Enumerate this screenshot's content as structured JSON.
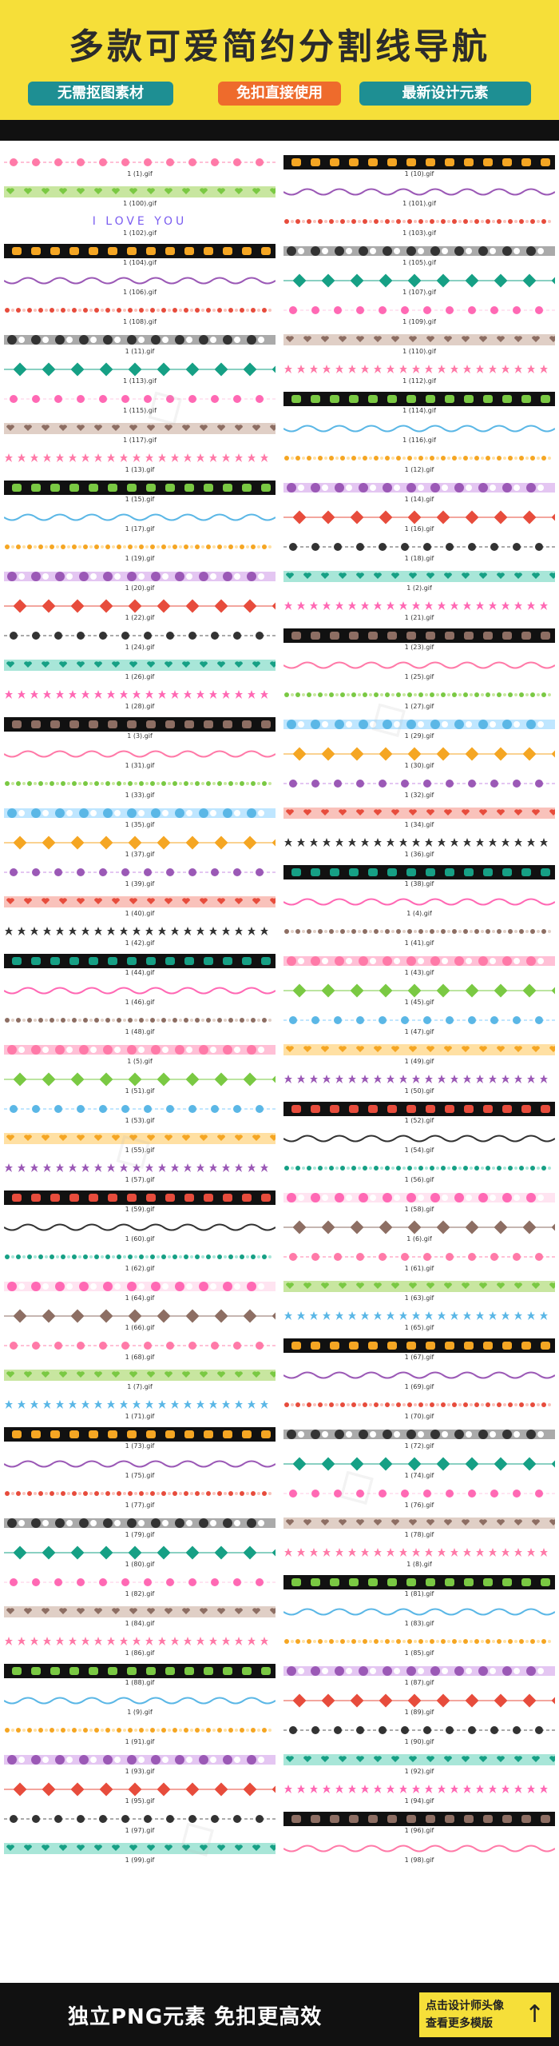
{
  "header": {
    "title": "多款可爱简约分割线导航",
    "tags": [
      "无需抠图素材",
      "免扣直接使用",
      "最新设计元素"
    ]
  },
  "colors": {
    "banner_yellow": "#f6df39",
    "tag_teal": "#1e8f93",
    "tag_orange": "#ee6b2c",
    "footer_black": "#111111"
  },
  "catalog": {
    "left": [
      "1 (1).gif",
      "1 (100).gif",
      "1 (102).gif",
      "1 (104).gif",
      "1 (106).gif",
      "1 (108).gif",
      "1 (11).gif",
      "1 (113).gif",
      "1 (115).gif",
      "1 (117).gif",
      "1 (13).gif",
      "1 (15).gif",
      "1 (17).gif",
      "1 (19).gif",
      "1 (20).gif",
      "1 (22).gif",
      "1 (24).gif",
      "1 (26).gif",
      "1 (28).gif",
      "1 (3).gif",
      "1 (31).gif",
      "1 (33).gif",
      "1 (35).gif",
      "1 (37).gif",
      "1 (39).gif",
      "1 (40).gif",
      "1 (42).gif",
      "1 (44).gif",
      "1 (46).gif",
      "1 (48).gif",
      "1 (5).gif",
      "1 (51).gif",
      "1 (53).gif",
      "1 (55).gif",
      "1 (57).gif",
      "1 (59).gif",
      "1 (60).gif",
      "1 (62).gif",
      "1 (64).gif",
      "1 (66).gif",
      "1 (68).gif",
      "1 (7).gif",
      "1 (71).gif",
      "1 (73).gif",
      "1 (75).gif",
      "1 (77).gif",
      "1 (79).gif",
      "1 (80).gif",
      "1 (82).gif",
      "1 (84).gif",
      "1 (86).gif",
      "1 (88).gif",
      "1 (9).gif",
      "1 (91).gif",
      "1 (93).gif",
      "1 (95).gif",
      "1 (97).gif",
      "1 (99).gif"
    ],
    "right": [
      "1 (10).gif",
      "1 (101).gif",
      "1 (103).gif",
      "1 (105).gif",
      "1 (107).gif",
      "1 (109).gif",
      "1 (110).gif",
      "1 (112).gif",
      "1 (114).gif",
      "1 (116).gif",
      "1 (12).gif",
      "1 (14).gif",
      "1 (16).gif",
      "1 (18).gif",
      "1 (2).gif",
      "1 (21).gif",
      "1 (23).gif",
      "1 (25).gif",
      "1 (27).gif",
      "1 (29).gif",
      "1 (30).gif",
      "1 (32).gif",
      "1 (34).gif",
      "1 (36).gif",
      "1 (38).gif",
      "1 (4).gif",
      "1 (41).gif",
      "1 (43).gif",
      "1 (45).gif",
      "1 (47).gif",
      "1 (49).gif",
      "1 (50).gif",
      "1 (52).gif",
      "1 (54).gif",
      "1 (56).gif",
      "1 (58).gif",
      "1 (6).gif",
      "1 (61).gif",
      "1 (63).gif",
      "1 (65).gif",
      "1 (67).gif",
      "1 (69).gif",
      "1 (70).gif",
      "1 (72).gif",
      "1 (74).gif",
      "1 (76).gif",
      "1 (78).gif",
      "1 (8).gif",
      "1 (81).gif",
      "1 (83).gif",
      "1 (85).gif",
      "1 (87).gif",
      "1 (89).gif",
      "1 (90).gif",
      "1 (92).gif",
      "1 (94).gif",
      "1 (96).gif",
      "1 (98).gif"
    ],
    "left_divider_sample": "I LOVE YOU"
  },
  "footer": {
    "text": "独立PNG元素 免扣更高效",
    "cta_line1": "点击设计师头像",
    "cta_line2": "查看更多模版",
    "cta_icon": "arrow-up-icon"
  }
}
